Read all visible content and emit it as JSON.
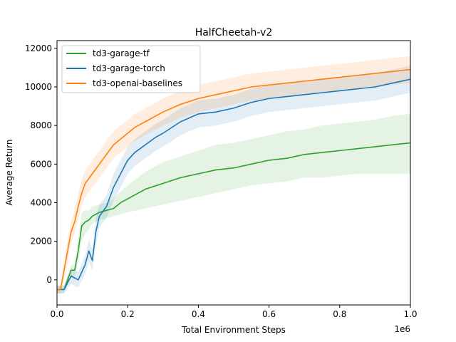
{
  "chart_data": {
    "type": "line",
    "title": "HalfCheetah-v2",
    "xlabel": "Total Environment Steps",
    "ylabel": "Average Return",
    "x_offset_label": "1e6",
    "xlim": [
      0,
      1.0
    ],
    "ylim": [
      -1300,
      12400
    ],
    "x_ticks": [
      0.0,
      0.2,
      0.4,
      0.6,
      0.8,
      1.0
    ],
    "x_tick_labels": [
      "0.0",
      "0.2",
      "0.4",
      "0.6",
      "0.8",
      "1.0"
    ],
    "y_ticks": [
      0,
      2000,
      4000,
      6000,
      8000,
      10000,
      12000
    ],
    "y_tick_labels": [
      "0",
      "2000",
      "4000",
      "6000",
      "8000",
      "10000",
      "12000"
    ],
    "grid": false,
    "legend_position": "upper-left",
    "series": [
      {
        "name": "td3-garage-tf",
        "color": "#2ca02c",
        "x": [
          0.0,
          0.02,
          0.04,
          0.05,
          0.06,
          0.07,
          0.08,
          0.09,
          0.1,
          0.12,
          0.14,
          0.16,
          0.18,
          0.2,
          0.25,
          0.3,
          0.35,
          0.4,
          0.45,
          0.5,
          0.55,
          0.6,
          0.65,
          0.7,
          0.75,
          0.8,
          0.85,
          0.9,
          0.95,
          1.0
        ],
        "values": [
          -500,
          -500,
          500,
          500,
          1500,
          2800,
          3000,
          3100,
          3300,
          3500,
          3600,
          3700,
          4000,
          4200,
          4700,
          5000,
          5300,
          5500,
          5700,
          5800,
          6000,
          6200,
          6300,
          6500,
          6600,
          6700,
          6800,
          6900,
          7000,
          7100
        ],
        "band_low": [
          -700,
          -700,
          200,
          200,
          900,
          2000,
          2400,
          2600,
          2900,
          3100,
          3200,
          3300,
          3400,
          3500,
          3700,
          3900,
          4100,
          4300,
          4500,
          4700,
          4900,
          5000,
          5100,
          5300,
          5300,
          5400,
          5500,
          5500,
          5500,
          5500
        ],
        "band_high": [
          -300,
          -300,
          800,
          800,
          2100,
          3500,
          3600,
          3600,
          3800,
          3900,
          4000,
          4200,
          4600,
          4900,
          5600,
          6100,
          6400,
          6700,
          7000,
          7100,
          7300,
          7500,
          7700,
          7800,
          8000,
          8100,
          8200,
          8300,
          8500,
          8600
        ]
      },
      {
        "name": "td3-garage-torch",
        "color": "#1f77b4",
        "x": [
          0.0,
          0.02,
          0.04,
          0.06,
          0.08,
          0.09,
          0.1,
          0.11,
          0.12,
          0.14,
          0.16,
          0.18,
          0.2,
          0.22,
          0.25,
          0.28,
          0.3,
          0.35,
          0.4,
          0.45,
          0.5,
          0.55,
          0.6,
          0.65,
          0.7,
          0.75,
          0.8,
          0.85,
          0.9,
          0.95,
          1.0
        ],
        "values": [
          -500,
          -500,
          200,
          0,
          800,
          1500,
          1000,
          2500,
          3300,
          3800,
          4800,
          5500,
          6200,
          6600,
          7000,
          7400,
          7600,
          8200,
          8600,
          8700,
          8900,
          9200,
          9400,
          9500,
          9600,
          9700,
          9800,
          9900,
          10000,
          10200,
          10400
        ],
        "band_low": [
          -700,
          -700,
          -200,
          -400,
          300,
          900,
          500,
          1800,
          2700,
          3200,
          4100,
          4800,
          5500,
          5900,
          6300,
          6700,
          6900,
          7500,
          7900,
          8000,
          8200,
          8500,
          8700,
          8800,
          8900,
          9000,
          9100,
          9200,
          9300,
          9500,
          9700
        ],
        "band_high": [
          -300,
          -300,
          600,
          400,
          1300,
          2100,
          1600,
          3200,
          3900,
          4400,
          5500,
          6200,
          6900,
          7300,
          7700,
          8100,
          8300,
          8900,
          9300,
          9400,
          9600,
          9900,
          10100,
          10200,
          10300,
          10400,
          10500,
          10600,
          10700,
          10900,
          11100
        ]
      },
      {
        "name": "td3-openai-baselines",
        "color": "#ff7f0e",
        "x": [
          0.0,
          0.01,
          0.02,
          0.03,
          0.04,
          0.05,
          0.06,
          0.07,
          0.08,
          0.1,
          0.12,
          0.14,
          0.16,
          0.18,
          0.2,
          0.22,
          0.25,
          0.28,
          0.3,
          0.35,
          0.4,
          0.45,
          0.5,
          0.55,
          0.6,
          0.65,
          0.7,
          0.75,
          0.8,
          0.85,
          0.9,
          0.95,
          1.0
        ],
        "values": [
          -500,
          -500,
          500,
          1500,
          2500,
          3000,
          3800,
          4500,
          5000,
          5500,
          6000,
          6500,
          7000,
          7300,
          7600,
          7900,
          8200,
          8500,
          8700,
          9100,
          9400,
          9600,
          9800,
          10000,
          10100,
          10200,
          10300,
          10400,
          10500,
          10600,
          10700,
          10800,
          10900
        ],
        "band_low": [
          -700,
          -700,
          0,
          900,
          1900,
          2400,
          3100,
          3800,
          4300,
          4800,
          5300,
          5800,
          6300,
          6600,
          6900,
          7200,
          7500,
          7800,
          8000,
          8400,
          8700,
          8900,
          9100,
          9300,
          9400,
          9500,
          9600,
          9700,
          9800,
          9900,
          10000,
          10100,
          10200
        ],
        "band_high": [
          -300,
          -300,
          1000,
          2100,
          3100,
          3600,
          4500,
          5200,
          5700,
          6200,
          6700,
          7200,
          7700,
          8000,
          8300,
          8600,
          8900,
          9200,
          9400,
          9800,
          10100,
          10300,
          10500,
          10700,
          10800,
          10900,
          11000,
          11100,
          11200,
          11300,
          11400,
          11500,
          11600
        ]
      }
    ]
  }
}
